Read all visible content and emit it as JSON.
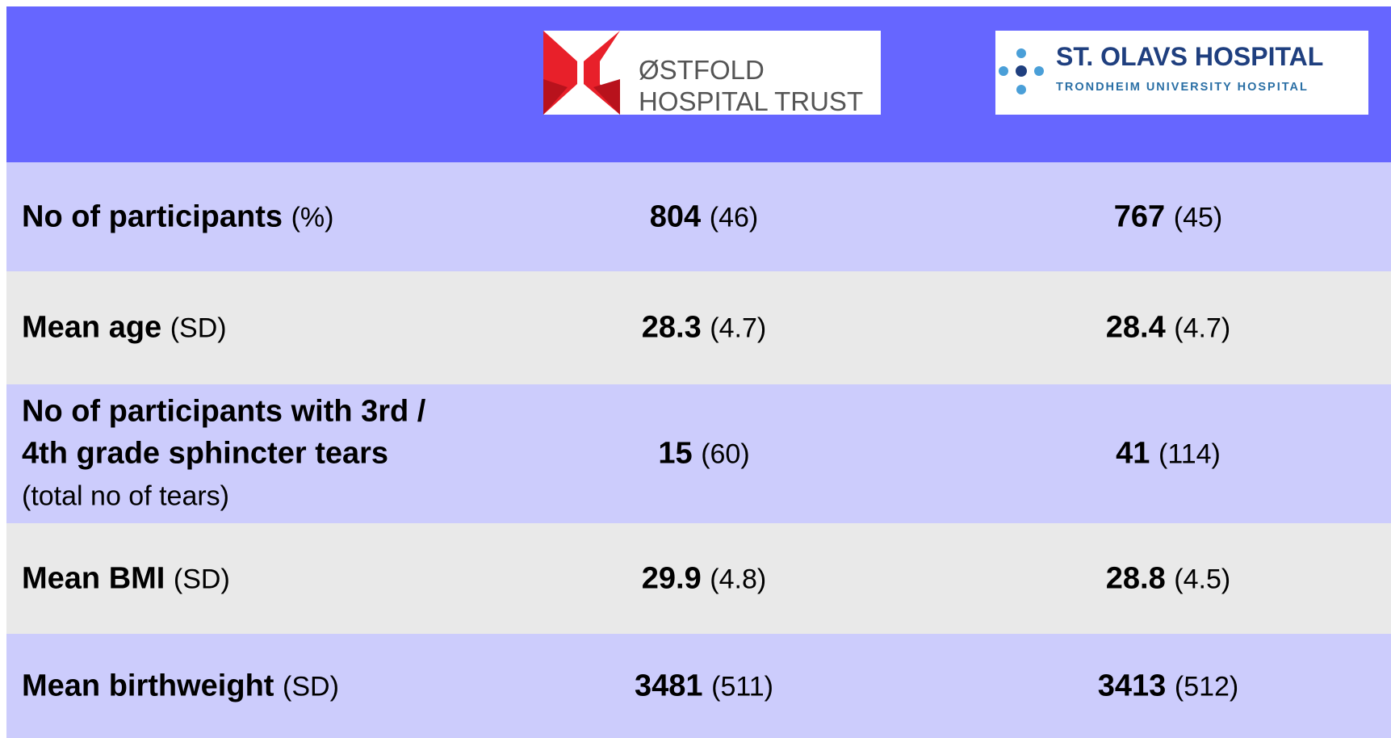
{
  "header": {
    "logos": [
      {
        "lines": [
          "ØSTFOLD",
          "HOSPITAL TRUST"
        ]
      },
      {
        "lines": [
          "ST. OLAVS HOSPITAL",
          "TRONDHEIM UNIVERSITY HOSPITAL"
        ]
      }
    ]
  },
  "table": {
    "rows": [
      {
        "label": "No of participants",
        "note": "(%)",
        "cells": [
          {
            "value": "804",
            "note": "(46)"
          },
          {
            "value": "767",
            "note": "(45)"
          }
        ]
      },
      {
        "label": "Mean age",
        "note": "(SD)",
        "cells": [
          {
            "value": "28.3",
            "note": "(4.7)"
          },
          {
            "value": "28.4",
            "note": "(4.7)"
          }
        ]
      },
      {
        "label": "No of participants with 3rd / 4th grade sphincter tears",
        "note": "(total no of tears)",
        "cells": [
          {
            "value": "15",
            "note": "(60)"
          },
          {
            "value": "41",
            "note": "(114)"
          }
        ]
      },
      {
        "label": "Mean BMI",
        "note": "(SD)",
        "cells": [
          {
            "value": "29.9",
            "note": "(4.8)"
          },
          {
            "value": "28.8",
            "note": "(4.5)"
          }
        ]
      },
      {
        "label": "Mean birthweight",
        "note": "(SD)",
        "cells": [
          {
            "value": "3481",
            "note": "(511)"
          },
          {
            "value": "3413",
            "note": "(512)"
          }
        ]
      }
    ]
  }
}
